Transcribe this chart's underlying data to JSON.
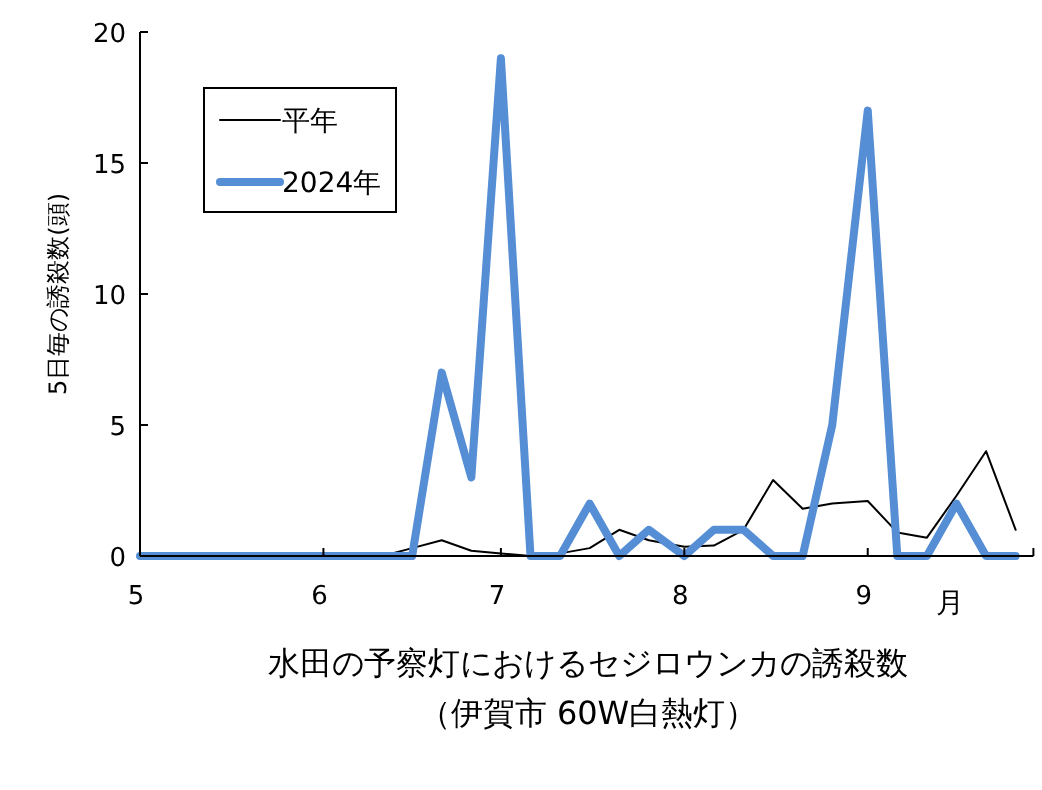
{
  "chart_data": {
    "type": "line",
    "title": "水田の予察灯におけるセジロウンカの誘殺数",
    "subtitle": "（伊賀市 60W白熱灯）",
    "xlabel": "月",
    "ylabel": "5日毎の誘殺数(頭)",
    "x": [
      "--05-01",
      "--05-06",
      "--05-11",
      "--05-16",
      "--05-21",
      "--05-26",
      "--06-01",
      "--06-06",
      "--06-11",
      "--06-16",
      "--06-21",
      "--06-26",
      "--07-01",
      "--07-06",
      "--07-11",
      "--07-16",
      "--07-21",
      "--07-26",
      "--08-01",
      "--08-06",
      "--08-11",
      "--08-16",
      "--08-21",
      "--08-26",
      "--09-01",
      "--09-06",
      "--09-11",
      "--09-16",
      "--09-21",
      "--09-26"
    ],
    "series": [
      {
        "name": "平年",
        "color": "#000000",
        "values": [
          0,
          0,
          0,
          0,
          0,
          0,
          0,
          0,
          0,
          0.3,
          0.6,
          0.2,
          0.1,
          0,
          0.1,
          0.3,
          1,
          0.6,
          0.35,
          0.4,
          1,
          2.9,
          1.8,
          2,
          2.1,
          0.9,
          0.7,
          2.3,
          4,
          1
        ]
      },
      {
        "name": "2024年",
        "color": "#558ed5",
        "values": [
          0,
          0,
          0,
          0,
          0,
          0,
          0,
          0,
          0,
          0,
          7,
          3,
          19,
          0,
          0,
          2,
          0,
          1,
          0,
          1,
          1,
          0,
          0,
          5,
          17,
          0,
          0,
          2,
          0,
          0
        ]
      }
    ],
    "xlim": [
      "--05-01",
      "--09-29"
    ],
    "xticks": [
      {
        "value": "--05-01",
        "label": "5"
      },
      {
        "value": "--06-01",
        "label": "6"
      },
      {
        "value": "--07-01",
        "label": "7"
      },
      {
        "value": "--08-01",
        "label": "8"
      },
      {
        "value": "--09-01",
        "label": "9"
      }
    ],
    "ylim": [
      0,
      20
    ],
    "yticks": [
      0,
      5,
      10,
      15,
      20
    ],
    "grid": false,
    "legend": "top left",
    "marker": "none",
    "line_style": "solid"
  }
}
